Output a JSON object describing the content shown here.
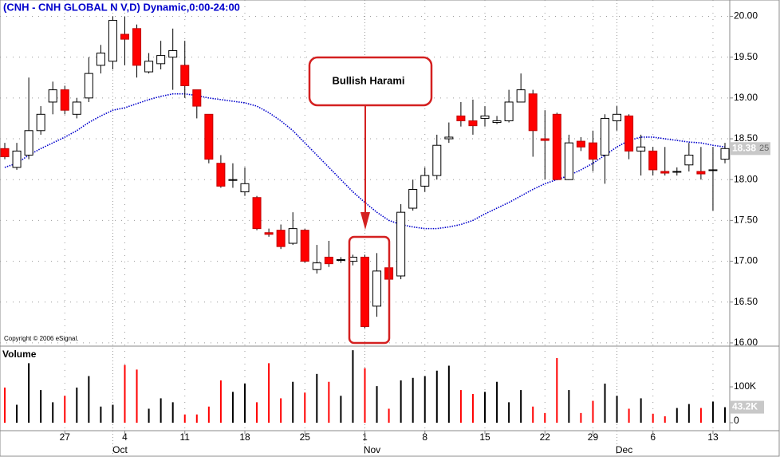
{
  "chart_data": {
    "type": "candlestick",
    "title": "(CNH - CNH GLOBAL N V,D) Dynamic,0:00-24:00",
    "copyright": "Copyright © 2006 eSignal.",
    "annotation": "Bullish Harami",
    "categories": [
      null,
      null,
      null,
      null,
      null,
      "27",
      null,
      null,
      null,
      null,
      "4",
      null,
      null,
      null,
      null,
      "11",
      null,
      null,
      null,
      null,
      "18",
      null,
      null,
      null,
      null,
      "25",
      null,
      null,
      null,
      null,
      "1",
      null,
      null,
      null,
      null,
      "8",
      null,
      null,
      null,
      null,
      "15",
      null,
      null,
      null,
      null,
      "22",
      null,
      null,
      null,
      "29",
      null,
      null,
      null,
      null,
      "6",
      null,
      null,
      null,
      null,
      "13",
      null
    ],
    "month_labels": [
      null,
      null,
      null,
      null,
      null,
      null,
      null,
      null,
      null,
      "Oct",
      null,
      null,
      null,
      null,
      null,
      null,
      null,
      null,
      null,
      null,
      null,
      null,
      null,
      null,
      null,
      null,
      null,
      null,
      null,
      null,
      "Nov",
      null,
      null,
      null,
      null,
      null,
      null,
      null,
      null,
      null,
      null,
      null,
      null,
      null,
      null,
      null,
      null,
      null,
      null,
      null,
      null,
      "Dec",
      null,
      null,
      null,
      null,
      null,
      null,
      null,
      null,
      null
    ],
    "open": [
      18.38,
      18.15,
      18.3,
      18.6,
      18.95,
      19.1,
      18.8,
      19.0,
      19.4,
      19.45,
      19.78,
      19.85,
      19.32,
      19.42,
      19.5,
      19.4,
      19.1,
      18.8,
      18.2,
      18.0,
      17.85,
      17.78,
      17.35,
      17.38,
      17.22,
      17.38,
      16.9,
      17.05,
      17.02,
      17.0,
      17.05,
      16.45,
      16.92,
      16.82,
      17.65,
      17.92,
      18.05,
      18.5,
      18.78,
      18.72,
      18.75,
      18.7,
      18.72,
      18.95,
      19.05,
      18.5,
      18.8,
      18.0,
      18.47,
      18.45,
      18.3,
      18.72,
      18.78,
      18.35,
      18.35,
      18.1,
      18.1,
      18.18,
      18.1,
      18.12,
      18.25
    ],
    "high": [
      18.45,
      18.45,
      19.25,
      18.9,
      19.2,
      19.15,
      19.0,
      19.5,
      19.65,
      20.0,
      20.0,
      19.9,
      19.55,
      19.7,
      19.85,
      19.7,
      19.1,
      18.8,
      18.3,
      18.2,
      18.15,
      17.8,
      17.4,
      17.45,
      17.6,
      17.4,
      17.2,
      17.25,
      17.05,
      17.08,
      17.08,
      17.1,
      16.92,
      17.7,
      18.0,
      18.15,
      18.55,
      18.7,
      18.95,
      18.98,
      18.9,
      18.78,
      19.1,
      19.3,
      19.1,
      18.85,
      18.82,
      18.55,
      18.52,
      18.6,
      18.8,
      18.9,
      18.8,
      18.55,
      18.4,
      18.4,
      18.15,
      18.45,
      18.4,
      18.4,
      18.45
    ],
    "low": [
      18.25,
      18.12,
      18.25,
      18.55,
      18.8,
      18.8,
      18.75,
      18.95,
      19.3,
      19.35,
      19.4,
      19.25,
      19.3,
      19.35,
      19.1,
      19.0,
      18.75,
      18.2,
      17.9,
      17.9,
      17.8,
      17.38,
      17.3,
      17.15,
      17.2,
      16.98,
      16.85,
      16.93,
      16.98,
      16.95,
      16.18,
      16.32,
      16.75,
      16.78,
      17.62,
      17.85,
      18.0,
      18.45,
      18.65,
      18.55,
      18.65,
      18.68,
      18.7,
      18.95,
      18.28,
      18.0,
      18.0,
      18.0,
      18.35,
      18.1,
      17.95,
      18.6,
      18.25,
      18.05,
      18.05,
      18.05,
      18.05,
      18.1,
      18.0,
      17.62,
      18.2
    ],
    "close": [
      18.28,
      18.35,
      18.6,
      18.8,
      19.1,
      18.85,
      18.95,
      19.3,
      19.55,
      19.95,
      19.72,
      19.4,
      19.45,
      19.52,
      19.58,
      19.15,
      18.9,
      18.25,
      17.92,
      18.0,
      17.95,
      17.4,
      17.33,
      17.18,
      17.4,
      17.0,
      16.98,
      16.97,
      17.02,
      17.05,
      16.2,
      16.88,
      16.78,
      17.6,
      17.88,
      18.05,
      18.42,
      18.52,
      18.72,
      18.66,
      18.78,
      18.72,
      18.95,
      19.1,
      18.6,
      18.48,
      18.0,
      18.45,
      18.4,
      18.25,
      18.75,
      18.8,
      18.35,
      18.4,
      18.12,
      18.08,
      18.1,
      18.3,
      18.07,
      18.12,
      18.38
    ],
    "up_color": "#ffffff",
    "down_color": "#ff0000",
    "moving_average": {
      "color": "#0000cc",
      "values": [
        18.15,
        18.2,
        18.3,
        18.38,
        18.45,
        18.52,
        18.6,
        18.7,
        18.78,
        18.85,
        18.88,
        18.93,
        18.98,
        19.02,
        19.05,
        19.05,
        19.03,
        19.0,
        18.98,
        18.96,
        18.94,
        18.9,
        18.82,
        18.72,
        18.6,
        18.45,
        18.3,
        18.15,
        18.0,
        17.85,
        17.72,
        17.6,
        17.5,
        17.45,
        17.42,
        17.4,
        17.4,
        17.42,
        17.45,
        17.5,
        17.58,
        17.65,
        17.72,
        17.8,
        17.88,
        17.95,
        18.0,
        18.05,
        18.12,
        18.2,
        18.3,
        18.4,
        18.48,
        18.52,
        18.52,
        18.5,
        18.48,
        18.46,
        18.45,
        18.42,
        18.4
      ]
    },
    "ylim": [
      15.97,
      20.2
    ],
    "yticks": [
      {
        "value": 16,
        "label": "16.00"
      },
      {
        "value": 16.5,
        "label": "16.50"
      },
      {
        "value": 17,
        "label": "17.00"
      },
      {
        "value": 17.5,
        "label": "17.50"
      },
      {
        "value": 18,
        "label": "18.00"
      },
      {
        "value": 18.5,
        "label": "18.50"
      },
      {
        "value": 19,
        "label": "19.00"
      },
      {
        "value": 19.5,
        "label": "19.50"
      },
      {
        "value": 20,
        "label": "20.00"
      }
    ],
    "last_price_label": "18.38",
    "last_price_suffix": "25",
    "volume": {
      "title": "Volume",
      "values": [
        98,
        50,
        166,
        91,
        57,
        75,
        98,
        130,
        45,
        50,
        161,
        148,
        39,
        68,
        57,
        23,
        23,
        45,
        118,
        86,
        109,
        57,
        166,
        68,
        114,
        84,
        136,
        114,
        75,
        202,
        152,
        102,
        39,
        118,
        125,
        130,
        145,
        159,
        91,
        80,
        86,
        114,
        57,
        91,
        45,
        27,
        180,
        91,
        27,
        61,
        109,
        75,
        39,
        68,
        25,
        18,
        41,
        52,
        41,
        59,
        43.2
      ],
      "value_labels": [
        null,
        null,
        null,
        null,
        null,
        null,
        null,
        null,
        null,
        null,
        null,
        null,
        null,
        null,
        null,
        null,
        null,
        null,
        null,
        null,
        null,
        null,
        null,
        null,
        null,
        null,
        null,
        null,
        null,
        null,
        null,
        null,
        null,
        null,
        null,
        null,
        null,
        null,
        null,
        null,
        null,
        null,
        null,
        null,
        null,
        null,
        null,
        null,
        null,
        null,
        null,
        null,
        null,
        null,
        null,
        null,
        null,
        null,
        null,
        null,
        "43.2K"
      ],
      "ylim": [
        0,
        209
      ],
      "yticks": [
        {
          "value": 0,
          "label": "0"
        },
        {
          "value": 100,
          "label": "100K"
        }
      ]
    },
    "grid": true
  }
}
